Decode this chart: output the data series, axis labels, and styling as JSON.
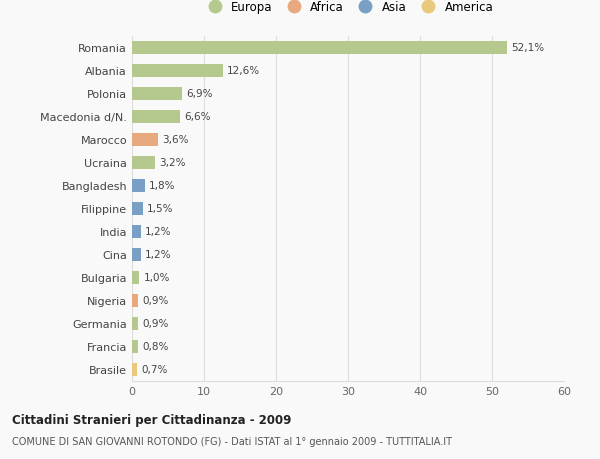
{
  "countries": [
    "Romania",
    "Albania",
    "Polonia",
    "Macedonia d/N.",
    "Marocco",
    "Ucraina",
    "Bangladesh",
    "Filippine",
    "India",
    "Cina",
    "Bulgaria",
    "Nigeria",
    "Germania",
    "Francia",
    "Brasile"
  ],
  "values": [
    52.1,
    12.6,
    6.9,
    6.6,
    3.6,
    3.2,
    1.8,
    1.5,
    1.2,
    1.2,
    1.0,
    0.9,
    0.9,
    0.8,
    0.7
  ],
  "labels": [
    "52,1%",
    "12,6%",
    "6,9%",
    "6,6%",
    "3,6%",
    "3,2%",
    "1,8%",
    "1,5%",
    "1,2%",
    "1,2%",
    "1,0%",
    "0,9%",
    "0,9%",
    "0,8%",
    "0,7%"
  ],
  "colors": [
    "#b5c98e",
    "#b5c98e",
    "#b5c98e",
    "#b5c98e",
    "#e8a97e",
    "#b5c98e",
    "#7a9fc4",
    "#7a9fc4",
    "#7a9fc4",
    "#7a9fc4",
    "#b5c98e",
    "#e8a97e",
    "#b5c98e",
    "#b5c98e",
    "#e8c97e"
  ],
  "legend_labels": [
    "Europa",
    "Africa",
    "Asia",
    "America"
  ],
  "legend_colors": [
    "#b5c98e",
    "#e8a97e",
    "#7a9fc4",
    "#e8c97e"
  ],
  "title1": "Cittadini Stranieri per Cittadinanza - 2009",
  "title2": "COMUNE DI SAN GIOVANNI ROTONDO (FG) - Dati ISTAT al 1° gennaio 2009 - TUTTITALIA.IT",
  "xlim": [
    0,
    60
  ],
  "xticks": [
    0,
    10,
    20,
    30,
    40,
    50,
    60
  ],
  "background_color": "#f9f9f9",
  "grid_color": "#dddddd"
}
